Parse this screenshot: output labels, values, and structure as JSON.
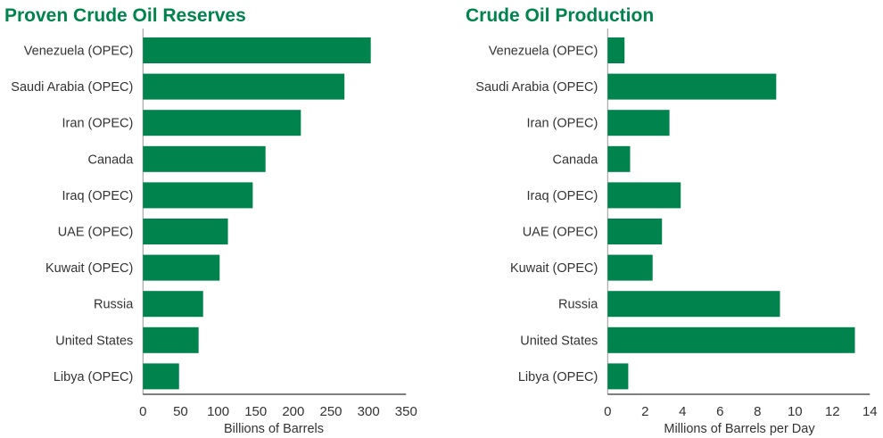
{
  "colors": {
    "bar": "#00834d",
    "title": "#00834d",
    "axis": "#555555"
  },
  "chart_data": [
    {
      "type": "bar",
      "orientation": "horizontal",
      "title": "Proven Crude Oil Reserves",
      "xlabel": "Billions of Barrels",
      "ylabel": "",
      "categories": [
        "Venezuela (OPEC)",
        "Saudi Arabia (OPEC)",
        "Iran (OPEC)",
        "Canada",
        "Iraq (OPEC)",
        "UAE (OPEC)",
        "Kuwait (OPEC)",
        "Russia",
        "United States",
        "Libya (OPEC)"
      ],
      "values": [
        303,
        268,
        210,
        163,
        146,
        113,
        102,
        80,
        74,
        48
      ],
      "xlim": [
        0,
        350
      ],
      "xticks": [
        "0",
        "50",
        "100",
        "150",
        "200",
        "250",
        "300",
        "350"
      ],
      "grid": false
    },
    {
      "type": "bar",
      "orientation": "horizontal",
      "title": "Crude Oil Production",
      "xlabel": "Millions of Barrels per Day",
      "ylabel": "",
      "categories": [
        "Venezuela (OPEC)",
        "Saudi Arabia (OPEC)",
        "Iran (OPEC)",
        "Canada",
        "Iraq (OPEC)",
        "UAE (OPEC)",
        "Kuwait (OPEC)",
        "Russia",
        "United States",
        "Libya (OPEC)"
      ],
      "values": [
        0.9,
        9.0,
        3.3,
        1.2,
        3.9,
        2.9,
        2.4,
        9.2,
        13.2,
        1.1
      ],
      "xlim": [
        0,
        14
      ],
      "xticks": [
        "0",
        "2",
        "4",
        "6",
        "8",
        "10",
        "12",
        "14"
      ],
      "grid": false
    }
  ]
}
